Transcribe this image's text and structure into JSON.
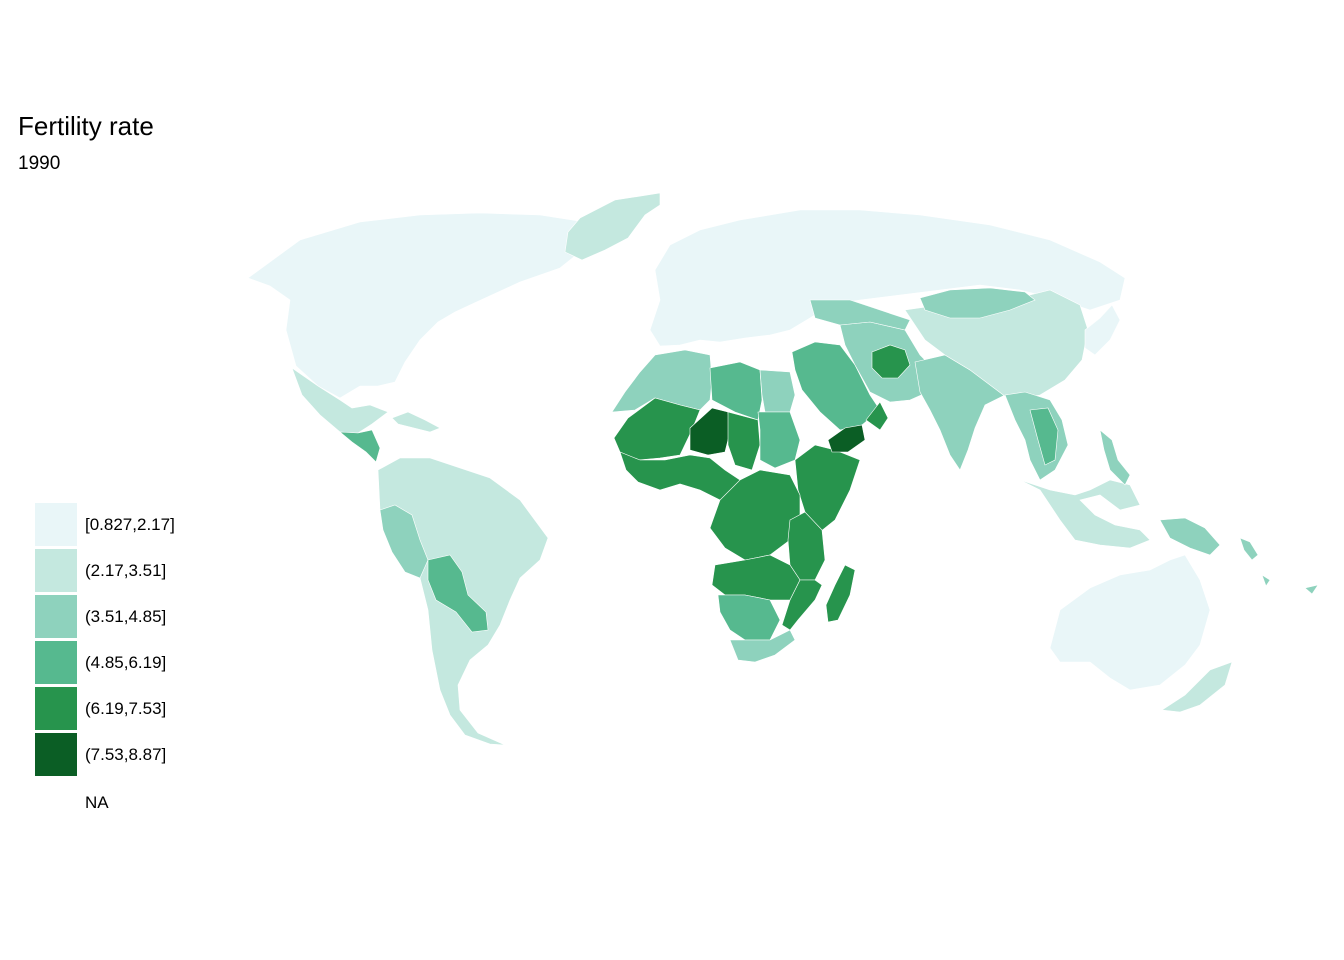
{
  "title": "Fertility rate",
  "subtitle": "1990",
  "legend": {
    "items": [
      {
        "label": "[0.827,2.17]",
        "color": "#e9f6f8"
      },
      {
        "label": "(2.17,3.51]",
        "color": "#c4e8df"
      },
      {
        "label": "(3.51,4.85]",
        "color": "#8ed2bd"
      },
      {
        "label": "(4.85,6.19]",
        "color": "#56b98f"
      },
      {
        "label": "(6.19,7.53]",
        "color": "#27944d"
      },
      {
        "label": "(7.53,8.87]",
        "color": "#0b5e25"
      },
      {
        "label": "NA",
        "color": "#ffffff"
      }
    ]
  },
  "regions": [
    {
      "name": "north-america",
      "class": 0
    },
    {
      "name": "greenland",
      "class": 1
    },
    {
      "name": "mexico",
      "class": 1
    },
    {
      "name": "central-america",
      "class": 3
    },
    {
      "name": "caribbean",
      "class": 1
    },
    {
      "name": "south-america",
      "class": 1
    },
    {
      "name": "andean-west",
      "class": 2
    },
    {
      "name": "bolivia-paraguay",
      "class": 3
    },
    {
      "name": "europe-russia",
      "class": 0
    },
    {
      "name": "north-africa-west",
      "class": 2
    },
    {
      "name": "libya",
      "class": 3
    },
    {
      "name": "egypt",
      "class": 2
    },
    {
      "name": "sahel-west",
      "class": 4
    },
    {
      "name": "niger",
      "class": 5
    },
    {
      "name": "chad",
      "class": 4
    },
    {
      "name": "sudan",
      "class": 3
    },
    {
      "name": "west-africa-coast",
      "class": 4
    },
    {
      "name": "horn-of-africa",
      "class": 4
    },
    {
      "name": "central-africa",
      "class": 4
    },
    {
      "name": "east-africa",
      "class": 4
    },
    {
      "name": "angola-zambia",
      "class": 4
    },
    {
      "name": "namibia-botswana",
      "class": 3
    },
    {
      "name": "south-africa",
      "class": 2
    },
    {
      "name": "mozambique",
      "class": 4
    },
    {
      "name": "madagascar",
      "class": 4
    },
    {
      "name": "middle-east",
      "class": 3
    },
    {
      "name": "yemen",
      "class": 5
    },
    {
      "name": "oman",
      "class": 4
    },
    {
      "name": "afghanistan",
      "class": 4
    },
    {
      "name": "iran-pakistan",
      "class": 2
    },
    {
      "name": "central-asia",
      "class": 2
    },
    {
      "name": "india",
      "class": 2
    },
    {
      "name": "china",
      "class": 1
    },
    {
      "name": "mongolia",
      "class": 2
    },
    {
      "name": "southeast-asia",
      "class": 2
    },
    {
      "name": "laos-cambodia",
      "class": 3
    },
    {
      "name": "indonesia-malaysia",
      "class": 1
    },
    {
      "name": "philippines",
      "class": 2
    },
    {
      "name": "papua-new-guinea",
      "class": 2
    },
    {
      "name": "japan-korea",
      "class": 0
    },
    {
      "name": "australia",
      "class": 0
    },
    {
      "name": "new-zealand",
      "class": 1
    },
    {
      "name": "pacific-islands",
      "class": 2
    }
  ]
}
